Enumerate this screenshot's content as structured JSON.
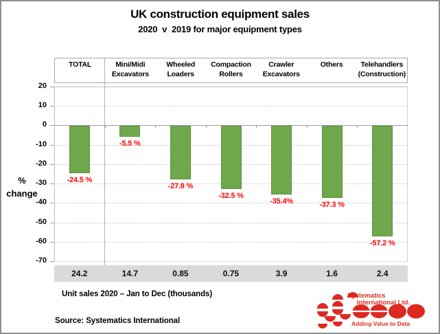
{
  "chart_data": {
    "type": "bar",
    "title": "UK construction equipment sales",
    "subtitle": "2020  v  2019 for major equipment types",
    "ylabel": "% change",
    "ylabel_lines": [
      "%",
      "change"
    ],
    "ylim": [
      -70,
      20
    ],
    "y_ticks": [
      20,
      10,
      0,
      -10,
      -20,
      -30,
      -40,
      -50,
      -60,
      -70
    ],
    "grid": "dotted horizontal gridlines, solid zero line",
    "legend": "none",
    "categories": [
      "TOTAL",
      "Mini/Midi Excavators",
      "Wheeled Loaders",
      "Compaction Rollers",
      "Crawler Excavators",
      "Others",
      "Telehandlers (Construction)"
    ],
    "category_label_lines": [
      [
        "TOTAL"
      ],
      [
        "Mini/Midi",
        "Excavators"
      ],
      [
        "Wheeled",
        "Loaders"
      ],
      [
        "Compaction",
        "Rollers"
      ],
      [
        "Crawler",
        "Excavators"
      ],
      [
        "Others"
      ],
      [
        "Telehandlers",
        "(Construction)"
      ]
    ],
    "values": [
      -24.5,
      -5.5,
      -27.8,
      -32.5,
      -35.4,
      -37.3,
      -57.2
    ],
    "value_labels": [
      "-24.5 %",
      "-5.5 %",
      "-27.8 %",
      "-32.5 %",
      "-35.4%",
      "-37.3 %",
      "-57.2 %"
    ],
    "unit_sales_2020_thousands": [
      24.2,
      14.7,
      0.85,
      0.75,
      3.9,
      1.6,
      2.4
    ],
    "unit_sales_labels": [
      "24.2",
      "14.7",
      "0.85",
      "0.75",
      "3.9",
      "1.6",
      "2.4"
    ],
    "bar_color": "#6fa84c",
    "bar_border_color": "#5e9140",
    "value_label_color": "#ff0000"
  },
  "footer": {
    "unit_sales_caption": "Unit sales 2020 – Jan to Dec  (thousands)",
    "source": "Source: Systematics International"
  },
  "logo": {
    "name_line1": "Systematics",
    "name_line2": "International Ltd.",
    "tagline": "Adding Value to Data",
    "color": "#dc2a21"
  }
}
